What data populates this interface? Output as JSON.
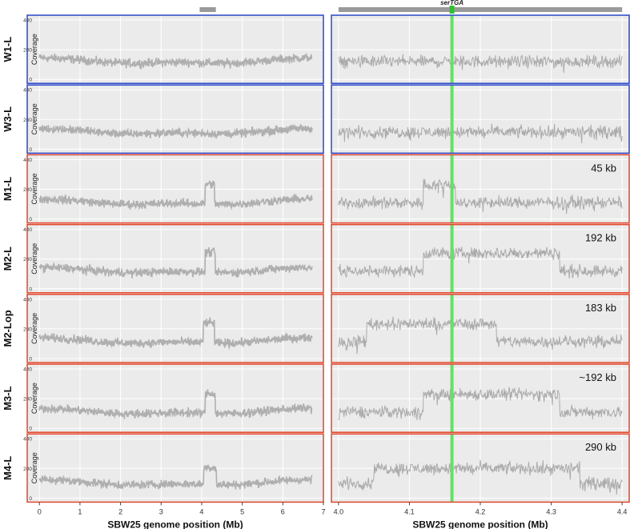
{
  "chart_data": {
    "type": "line",
    "ylabel": "Coverage",
    "ylim": [
      0,
      400
    ],
    "y_ticks": [
      "0",
      "200",
      "400"
    ],
    "grid": true,
    "whole_genome": {
      "xlabel": "SBW25 genome position (Mb)",
      "xlim": [
        -0.3,
        7.0
      ],
      "x_ticks": [
        "0",
        "1",
        "2",
        "3",
        "4",
        "5",
        "6",
        "7"
      ],
      "genome_length": 6.72,
      "zoom_region_marker": [
        3.95,
        4.35
      ]
    },
    "zoom": {
      "xlabel": "SBW25 genome position (Mb)",
      "xlim": [
        3.99,
        4.41
      ],
      "x_ticks": [
        "4.0",
        "4.1",
        "4.2",
        "4.3",
        "4.4"
      ],
      "highlight_label": "serTGA",
      "highlight_x": 4.16,
      "highlight_color": "#66e066"
    },
    "series": [
      {
        "name": "W1-L",
        "type": "wild-type",
        "baseline": 120,
        "dup_level": null,
        "dup_start": null,
        "dup_end": null,
        "size_label": ""
      },
      {
        "name": "W3-L",
        "type": "wild-type",
        "baseline": 115,
        "dup_level": null,
        "dup_start": null,
        "dup_end": null,
        "size_label": ""
      },
      {
        "name": "M1-L",
        "type": "mutant",
        "baseline": 110,
        "dup_level": 230,
        "dup_start": 4.12,
        "dup_end": 4.165,
        "size_label": "45 kb"
      },
      {
        "name": "M2-L",
        "type": "mutant",
        "baseline": 120,
        "dup_level": 240,
        "dup_start": 4.12,
        "dup_end": 4.312,
        "size_label": "192 kb"
      },
      {
        "name": "M2-Lop",
        "type": "mutant",
        "baseline": 115,
        "dup_level": 235,
        "dup_start": 4.04,
        "dup_end": 4.223,
        "size_label": "183 kb"
      },
      {
        "name": "M3-L",
        "type": "mutant",
        "baseline": 110,
        "dup_level": 230,
        "dup_start": 4.12,
        "dup_end": 4.312,
        "size_label": "~192 kb"
      },
      {
        "name": "M4-L",
        "type": "mutant",
        "baseline": 100,
        "dup_level": 200,
        "dup_start": 4.05,
        "dup_end": 4.34,
        "size_label": "290 kb"
      }
    ],
    "colors": {
      "wild_type_border": "#2a46c8",
      "mutant_border": "#e0462c",
      "panel_bg": "#ebebeb",
      "grid": "#ffffff",
      "trace": "#a8a8a8",
      "region_bar": "#9a9a9a"
    }
  }
}
